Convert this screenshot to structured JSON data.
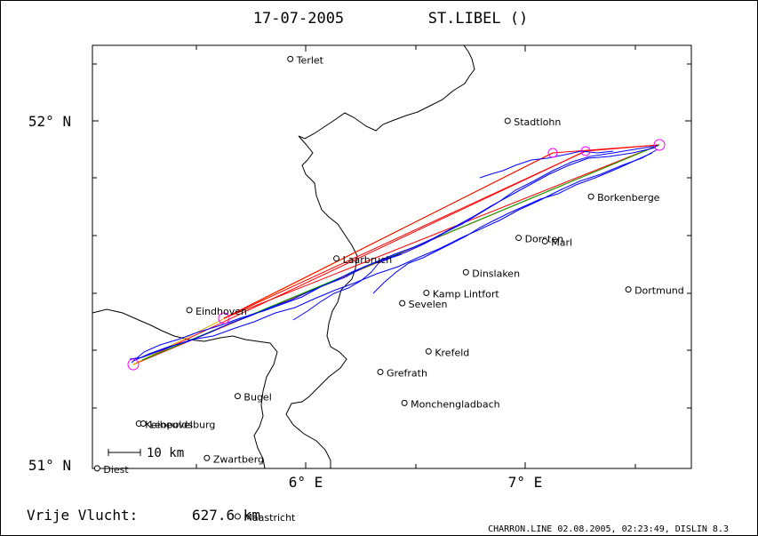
{
  "header": {
    "date": "17-07-2005",
    "site": "ST.LIBEL ()"
  },
  "axes": {
    "lat_labels": [
      "52° N",
      "51° N"
    ],
    "lon_labels": [
      "6° E",
      "7° E"
    ]
  },
  "towns": [
    {
      "name": "Terlet",
      "lon": 5.93,
      "lat": 52.18
    },
    {
      "name": "Stadtlohn",
      "lon": 6.92,
      "lat": 52.0
    },
    {
      "name": "Laarbruch",
      "lon": 6.14,
      "lat": 51.6
    },
    {
      "name": "Eindhoven",
      "lon": 5.47,
      "lat": 51.45
    },
    {
      "name": "Borkenberge",
      "lon": 7.3,
      "lat": 51.78
    },
    {
      "name": "Dorsten",
      "lon": 6.97,
      "lat": 51.66
    },
    {
      "name": "Marl",
      "lon": 7.09,
      "lat": 51.65
    },
    {
      "name": "Dinslaken",
      "lon": 6.73,
      "lat": 51.56
    },
    {
      "name": "Kamp Lintfort",
      "lon": 6.55,
      "lat": 51.5
    },
    {
      "name": "Sevelen",
      "lon": 6.44,
      "lat": 51.47
    },
    {
      "name": "Dortmund",
      "lon": 7.47,
      "lat": 51.51
    },
    {
      "name": "Krefeld",
      "lon": 6.56,
      "lat": 51.33
    },
    {
      "name": "Grefrath",
      "lon": 6.34,
      "lat": 51.27
    },
    {
      "name": "Bugel",
      "lon": 5.69,
      "lat": 51.2
    },
    {
      "name": "Keiheuvel",
      "lon": 5.24,
      "lat": 51.12
    },
    {
      "name": "Monchengladbach",
      "lon": 6.45,
      "lat": 51.18
    },
    {
      "name": "Leopoldsburg",
      "lon": 5.26,
      "lat": 51.12
    },
    {
      "name": "Diest",
      "lon": 5.05,
      "lat": 50.99
    },
    {
      "name": "Zwartberg",
      "lon": 5.55,
      "lat": 51.02
    },
    {
      "name": "Maastricht",
      "lon": 5.69,
      "lat": 50.85
    }
  ],
  "footer": {
    "distance_label": "Vrije Vlucht:",
    "distance_value": "627.6 km",
    "scale_label": "10 km",
    "credit": "CHARRON.LINE 02.08.2005, 02:23:49, DISLIN 8.3"
  },
  "colors": {
    "track": "#0000ff",
    "legs": "#ff0000",
    "legs_alt": "#e0b000",
    "turnpoint": "#ff00ff",
    "border": "#000000"
  }
}
